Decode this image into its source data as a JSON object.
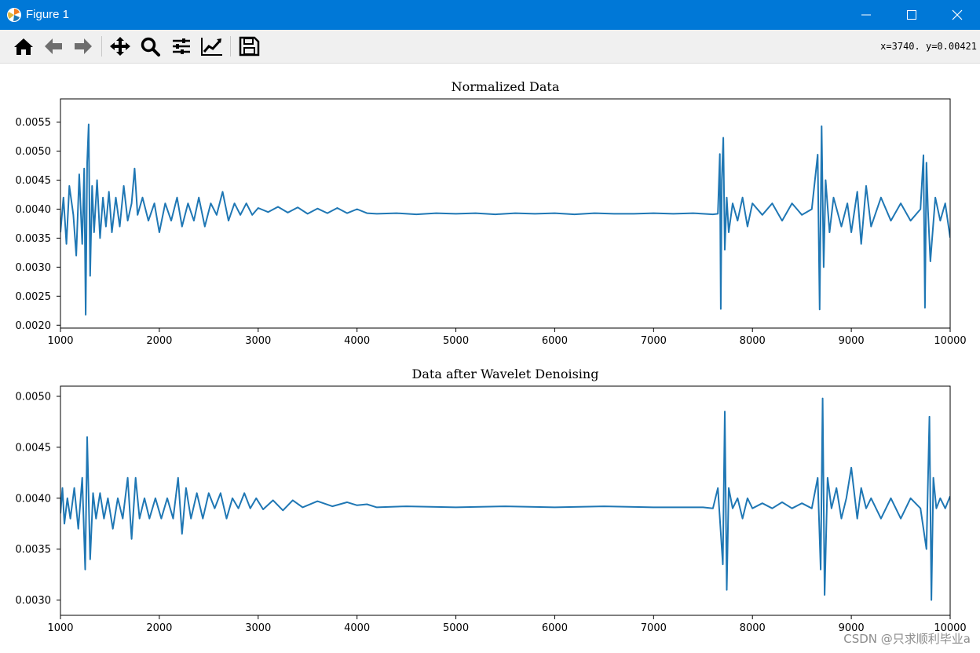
{
  "window": {
    "title": "Figure 1"
  },
  "toolbar": {
    "tools": [
      {
        "name": "home-icon"
      },
      {
        "name": "back-arrow-icon"
      },
      {
        "name": "forward-arrow-icon"
      },
      {
        "name": "pan-icon"
      },
      {
        "name": "zoom-icon"
      },
      {
        "name": "subplots-config-icon"
      },
      {
        "name": "edit-axis-icon"
      },
      {
        "name": "save-icon"
      }
    ],
    "coords": "x=3740.  y=0.00421"
  },
  "colors": {
    "titlebar": "#0078d7",
    "line": "#1f77b4"
  },
  "watermark": "CSDN @只求顺利毕业a",
  "chart_data": [
    {
      "type": "line",
      "title": "Normalized Data",
      "xlim": [
        1000,
        10000
      ],
      "ylim": [
        0.00195,
        0.0059
      ],
      "xticks": [
        1000,
        2000,
        3000,
        4000,
        5000,
        6000,
        7000,
        8000,
        9000,
        10000
      ],
      "xticklabels": [
        "1000",
        "2000",
        "3000",
        "4000",
        "5000",
        "6000",
        "7000",
        "8000",
        "9000",
        "10000"
      ],
      "yticks": [
        0.002,
        0.0025,
        0.003,
        0.0035,
        0.004,
        0.0045,
        0.005,
        0.0055
      ],
      "yticklabels": [
        "0.0020",
        "0.0025",
        "0.0030",
        "0.0035",
        "0.0040",
        "0.0045",
        "0.0050",
        "0.0055"
      ],
      "x": [
        1000,
        1030,
        1060,
        1090,
        1130,
        1160,
        1190,
        1220,
        1240,
        1255,
        1270,
        1285,
        1300,
        1320,
        1340,
        1370,
        1400,
        1430,
        1460,
        1490,
        1520,
        1560,
        1600,
        1640,
        1680,
        1720,
        1750,
        1780,
        1830,
        1890,
        1950,
        2000,
        2060,
        2120,
        2180,
        2230,
        2290,
        2350,
        2400,
        2460,
        2520,
        2580,
        2640,
        2700,
        2760,
        2820,
        2880,
        2940,
        3000,
        3100,
        3200,
        3300,
        3400,
        3500,
        3600,
        3700,
        3800,
        3900,
        4000,
        4100,
        4200,
        4400,
        4600,
        4800,
        5000,
        5200,
        5400,
        5600,
        5800,
        6000,
        6200,
        6400,
        6600,
        6800,
        7000,
        7200,
        7400,
        7600,
        7650,
        7670,
        7680,
        7690,
        7705,
        7720,
        7740,
        7760,
        7800,
        7850,
        7900,
        7950,
        8000,
        8100,
        8200,
        8300,
        8400,
        8500,
        8600,
        8660,
        8680,
        8700,
        8720,
        8740,
        8780,
        8820,
        8900,
        8960,
        9000,
        9060,
        9100,
        9150,
        9200,
        9300,
        9400,
        9500,
        9600,
        9700,
        9730,
        9745,
        9760,
        9775,
        9800,
        9850,
        9900,
        9950,
        10000
      ],
      "y": [
        0.0036,
        0.0042,
        0.0034,
        0.0044,
        0.0039,
        0.0032,
        0.0046,
        0.0034,
        0.0047,
        0.00218,
        0.0048,
        0.00546,
        0.00285,
        0.0044,
        0.0036,
        0.0045,
        0.0035,
        0.0042,
        0.0037,
        0.0043,
        0.0036,
        0.0042,
        0.0037,
        0.0044,
        0.0038,
        0.0041,
        0.0047,
        0.0039,
        0.0042,
        0.0038,
        0.0041,
        0.0036,
        0.0041,
        0.0038,
        0.0042,
        0.0037,
        0.0041,
        0.0038,
        0.0042,
        0.0037,
        0.0041,
        0.0039,
        0.0043,
        0.0038,
        0.0041,
        0.0039,
        0.0041,
        0.0039,
        0.00402,
        0.00395,
        0.00404,
        0.00394,
        0.00403,
        0.00392,
        0.00401,
        0.00393,
        0.00402,
        0.00393,
        0.004,
        0.00393,
        0.00392,
        0.00393,
        0.00391,
        0.00393,
        0.00392,
        0.00393,
        0.00391,
        0.00393,
        0.00392,
        0.00393,
        0.00391,
        0.00393,
        0.00392,
        0.00392,
        0.00393,
        0.00392,
        0.00393,
        0.00391,
        0.00392,
        0.00495,
        0.00228,
        0.0045,
        0.00523,
        0.0033,
        0.0042,
        0.0036,
        0.0041,
        0.0038,
        0.0042,
        0.0037,
        0.0041,
        0.0039,
        0.0041,
        0.0038,
        0.0041,
        0.0039,
        0.004,
        0.00494,
        0.00227,
        0.00543,
        0.003,
        0.0045,
        0.0036,
        0.0042,
        0.0037,
        0.0041,
        0.0036,
        0.0043,
        0.0034,
        0.0044,
        0.0037,
        0.0042,
        0.0038,
        0.0041,
        0.0038,
        0.004,
        0.00493,
        0.0023,
        0.0048,
        0.004,
        0.0031,
        0.0042,
        0.0038,
        0.0041,
        0.00351
      ]
    },
    {
      "type": "line",
      "title": "Data after Wavelet Denoising",
      "xlim": [
        1000,
        10000
      ],
      "ylim": [
        0.00285,
        0.0051
      ],
      "xticks": [
        1000,
        2000,
        3000,
        4000,
        5000,
        6000,
        7000,
        8000,
        9000,
        10000
      ],
      "xticklabels": [
        "1000",
        "2000",
        "3000",
        "4000",
        "5000",
        "6000",
        "7000",
        "8000",
        "9000",
        "10000"
      ],
      "yticks": [
        0.003,
        0.0035,
        0.004,
        0.0045,
        0.005
      ],
      "yticklabels": [
        "0.0030",
        "0.0035",
        "0.0040",
        "0.0045",
        "0.0050"
      ],
      "x": [
        1000,
        1020,
        1040,
        1070,
        1100,
        1140,
        1180,
        1220,
        1250,
        1270,
        1300,
        1330,
        1360,
        1400,
        1440,
        1480,
        1530,
        1580,
        1630,
        1680,
        1720,
        1760,
        1800,
        1850,
        1900,
        1960,
        2020,
        2080,
        2140,
        2190,
        2230,
        2270,
        2320,
        2380,
        2440,
        2500,
        2560,
        2620,
        2680,
        2740,
        2800,
        2860,
        2920,
        2980,
        3050,
        3150,
        3250,
        3350,
        3450,
        3600,
        3750,
        3900,
        4000,
        4100,
        4200,
        4500,
        5000,
        5500,
        6000,
        6500,
        7000,
        7500,
        7600,
        7650,
        7700,
        7720,
        7740,
        7760,
        7800,
        7850,
        7900,
        7950,
        8000,
        8100,
        8200,
        8300,
        8400,
        8500,
        8600,
        8660,
        8690,
        8710,
        8730,
        8760,
        8800,
        8850,
        8900,
        8950,
        9000,
        9060,
        9100,
        9150,
        9200,
        9300,
        9400,
        9500,
        9600,
        9700,
        9760,
        9790,
        9810,
        9830,
        9860,
        9900,
        9950,
        10000
      ],
      "y": [
        0.00385,
        0.0041,
        0.00375,
        0.004,
        0.0038,
        0.0041,
        0.0037,
        0.0042,
        0.0033,
        0.0046,
        0.0034,
        0.00405,
        0.0038,
        0.00405,
        0.0038,
        0.004,
        0.0037,
        0.004,
        0.0038,
        0.0042,
        0.0036,
        0.0042,
        0.0038,
        0.004,
        0.0038,
        0.004,
        0.0038,
        0.004,
        0.0038,
        0.0042,
        0.00365,
        0.0041,
        0.0038,
        0.00405,
        0.0038,
        0.00405,
        0.0039,
        0.00405,
        0.0038,
        0.004,
        0.0039,
        0.00405,
        0.0039,
        0.004,
        0.00389,
        0.00398,
        0.00388,
        0.00398,
        0.00391,
        0.00397,
        0.00392,
        0.00396,
        0.00393,
        0.00394,
        0.00391,
        0.00392,
        0.00391,
        0.00392,
        0.00391,
        0.00392,
        0.00391,
        0.00391,
        0.0039,
        0.0041,
        0.00335,
        0.00485,
        0.0031,
        0.0041,
        0.0039,
        0.004,
        0.0038,
        0.004,
        0.0039,
        0.00395,
        0.0039,
        0.00396,
        0.0039,
        0.00395,
        0.0039,
        0.0042,
        0.0033,
        0.00498,
        0.00305,
        0.0042,
        0.0039,
        0.0041,
        0.0038,
        0.004,
        0.0043,
        0.0038,
        0.0041,
        0.0039,
        0.004,
        0.0038,
        0.004,
        0.0038,
        0.004,
        0.0039,
        0.0035,
        0.0048,
        0.003,
        0.0042,
        0.0039,
        0.004,
        0.0039,
        0.00402
      ]
    }
  ]
}
